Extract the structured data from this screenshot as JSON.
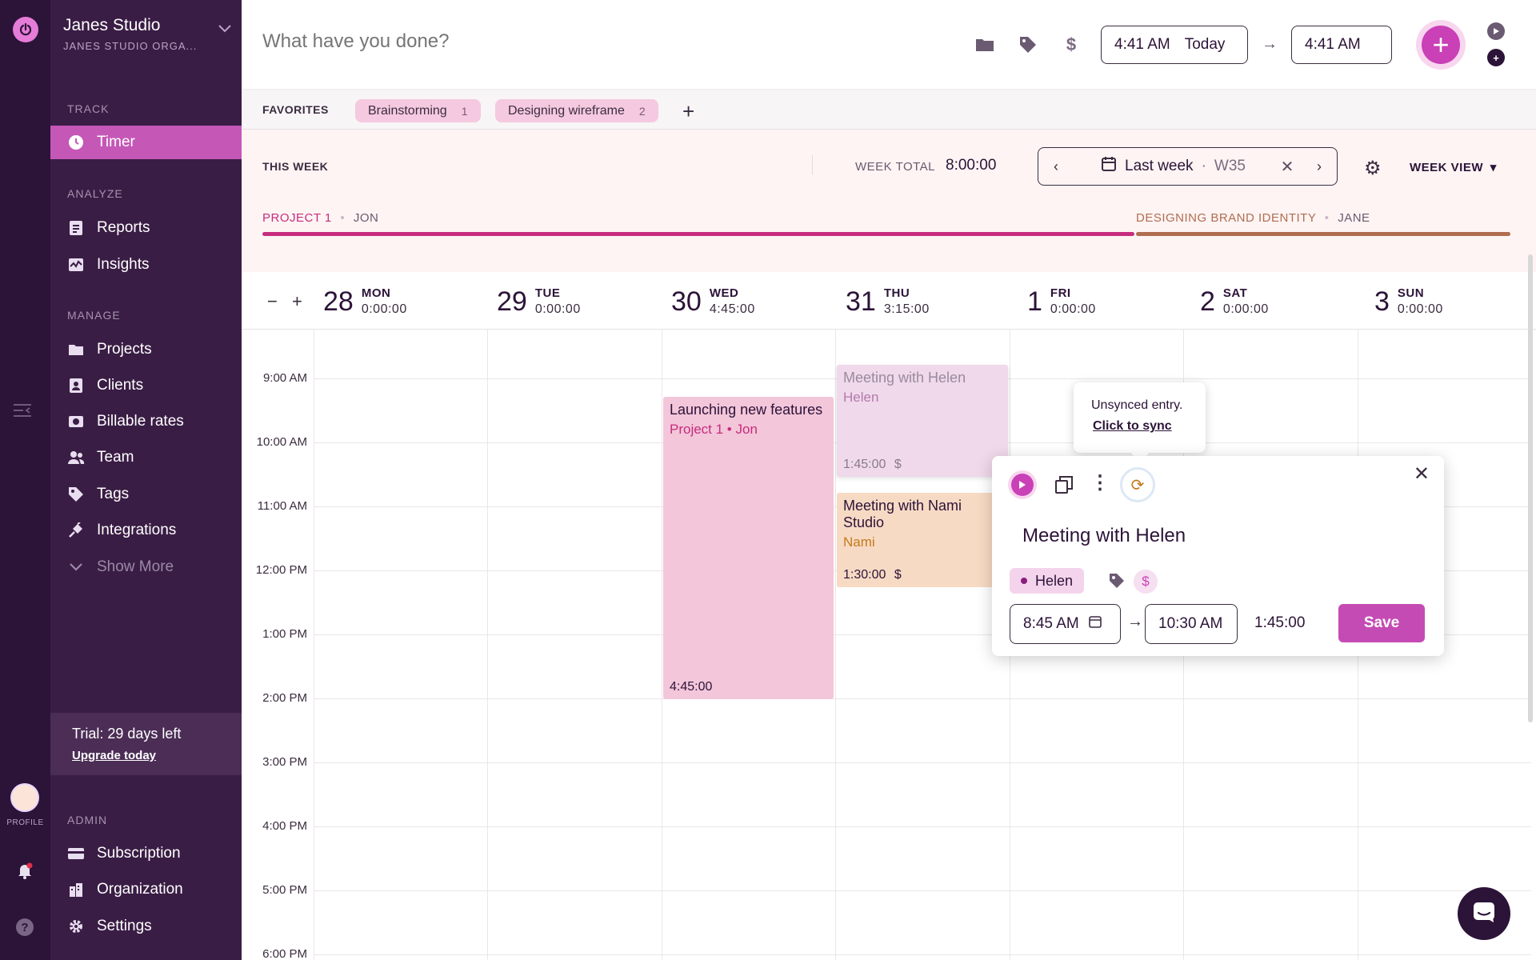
{
  "org": {
    "name": "Janes Studio",
    "subtitle": "JANES STUDIO ORGA..."
  },
  "rail": {
    "profile_label": "PROFILE"
  },
  "sidebar": {
    "track_label": "TRACK",
    "timer": "Timer",
    "analyze_label": "ANALYZE",
    "reports": "Reports",
    "insights": "Insights",
    "manage_label": "MANAGE",
    "projects": "Projects",
    "clients": "Clients",
    "billable_rates": "Billable rates",
    "team": "Team",
    "tags": "Tags",
    "integrations": "Integrations",
    "show_more": "Show More",
    "trial_text": "Trial: 29 days left",
    "upgrade": "Upgrade today",
    "admin_label": "ADMIN",
    "subscription": "Subscription",
    "organization": "Organization",
    "settings": "Settings"
  },
  "topbar": {
    "placeholder": "What have you done?",
    "start_time": "4:41 AM",
    "start_day": "Today",
    "end_time": "4:41 AM"
  },
  "favorites": {
    "label": "FAVORITES",
    "items": [
      {
        "name": "Brainstorming",
        "count": "1"
      },
      {
        "name": "Designing wireframe",
        "count": "2"
      }
    ]
  },
  "week": {
    "label": "THIS WEEK",
    "total_label": "WEEK TOTAL",
    "total_value": "8:00:00",
    "range_label": "Last week",
    "range_sep": "·",
    "week_number": "W35",
    "view": "WEEK VIEW",
    "projects": [
      {
        "name": "PROJECT 1",
        "client": "JON",
        "color": "#c72c7d"
      },
      {
        "name": "DESIGNING BRAND IDENTITY",
        "client": "JANE",
        "color": "#b06d50"
      }
    ]
  },
  "days": [
    {
      "num": "28",
      "name": "MON",
      "duration": "0:00:00"
    },
    {
      "num": "29",
      "name": "TUE",
      "duration": "0:00:00"
    },
    {
      "num": "30",
      "name": "WED",
      "duration": "4:45:00"
    },
    {
      "num": "31",
      "name": "THU",
      "duration": "3:15:00"
    },
    {
      "num": "1",
      "name": "FRI",
      "duration": "0:00:00"
    },
    {
      "num": "2",
      "name": "SAT",
      "duration": "0:00:00"
    },
    {
      "num": "3",
      "name": "SUN",
      "duration": "0:00:00"
    }
  ],
  "hours": [
    "9:00 AM",
    "10:00 AM",
    "11:00 AM",
    "12:00 PM",
    "1:00 PM",
    "2:00 PM",
    "3:00 PM",
    "4:00 PM",
    "5:00 PM",
    "6:00 PM"
  ],
  "entries": {
    "launch": {
      "title": "Launching new features",
      "sub": "Project 1 • Jon",
      "duration": "4:45:00"
    },
    "helen": {
      "title": "Meeting with Helen",
      "sub": "Helen",
      "duration": "1:45:00",
      "billable": "$"
    },
    "nami": {
      "title": "Meeting with Nami Studio",
      "sub": "Nami",
      "duration": "1:30:00",
      "billable": "$"
    }
  },
  "tooltip": {
    "text": "Unsynced entry.",
    "link": "Click to sync"
  },
  "popup": {
    "title": "Meeting with Helen",
    "client_chip": "Helen",
    "start": "8:45 AM",
    "end": "10:30 AM",
    "duration": "1:45:00",
    "save": "Save"
  },
  "colors": {
    "accent": "#c940b7",
    "sidebar": "#3a1d45",
    "rail": "#2c1338",
    "project1": "#c72c7d",
    "brand_identity": "#b06d50"
  }
}
